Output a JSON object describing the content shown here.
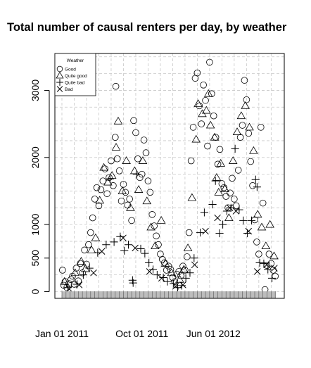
{
  "chart_data": {
    "type": "scatter",
    "title": "Total number of causal renters per day, by weather",
    "xlabel": "",
    "ylabel": "",
    "x_start": "2011-01-01",
    "x_end": "2012-12-31",
    "x_ticks": [
      {
        "date": "2011-01-01",
        "label": "Jan 01 2011"
      },
      {
        "date": "2011-10-01",
        "label": "Oct 01 2011"
      },
      {
        "date": "2012-06-01",
        "label": "Jun 01 2012"
      }
    ],
    "ylim": [
      -100,
      3550
    ],
    "y_ticks": [
      {
        "value": 0,
        "label": "0"
      },
      {
        "value": 500,
        "label": "500"
      },
      {
        "value": 1000,
        "label": "1000"
      },
      {
        "value": 2000,
        "label": "2000"
      },
      {
        "value": 3000,
        "label": "3000"
      }
    ],
    "grid": true,
    "legend_position": "top-left",
    "legend_title": "Weather",
    "series": [
      {
        "name": "Good",
        "marker": "circle",
        "points": [
          [
            "2011-01-03",
            320
          ],
          [
            "2011-01-07",
            95
          ],
          [
            "2011-01-12",
            150
          ],
          [
            "2011-01-18",
            60
          ],
          [
            "2011-01-25",
            120
          ],
          [
            "2011-02-01",
            180
          ],
          [
            "2011-02-06",
            230
          ],
          [
            "2011-02-12",
            110
          ],
          [
            "2011-02-19",
            350
          ],
          [
            "2011-02-26",
            160
          ],
          [
            "2011-03-05",
            420
          ],
          [
            "2011-03-12",
            280
          ],
          [
            "2011-03-19",
            620
          ],
          [
            "2011-03-26",
            410
          ],
          [
            "2011-04-02",
            700
          ],
          [
            "2011-04-09",
            880
          ],
          [
            "2011-04-16",
            1100
          ],
          [
            "2011-04-23",
            1380
          ],
          [
            "2011-04-30",
            1550
          ],
          [
            "2011-05-07",
            1280
          ],
          [
            "2011-05-14",
            1520
          ],
          [
            "2011-05-21",
            1650
          ],
          [
            "2011-05-28",
            1830
          ],
          [
            "2011-06-04",
            1460
          ],
          [
            "2011-06-11",
            1700
          ],
          [
            "2011-06-18",
            1950
          ],
          [
            "2011-06-25",
            1580
          ],
          [
            "2011-07-02",
            2300
          ],
          [
            "2011-07-04",
            3060
          ],
          [
            "2011-07-09",
            1980
          ],
          [
            "2011-07-16",
            1800
          ],
          [
            "2011-07-23",
            1350
          ],
          [
            "2011-07-30",
            1600
          ],
          [
            "2011-08-06",
            1480
          ],
          [
            "2011-08-13",
            1290
          ],
          [
            "2011-08-20",
            1380
          ],
          [
            "2011-08-27",
            1060
          ],
          [
            "2011-09-03",
            2550
          ],
          [
            "2011-09-10",
            2370
          ],
          [
            "2011-09-17",
            1980
          ],
          [
            "2011-09-24",
            1700
          ],
          [
            "2011-10-01",
            1750
          ],
          [
            "2011-10-08",
            2260
          ],
          [
            "2011-10-15",
            2070
          ],
          [
            "2011-10-22",
            1650
          ],
          [
            "2011-10-29",
            1480
          ],
          [
            "2011-11-05",
            1150
          ],
          [
            "2011-11-12",
            980
          ],
          [
            "2011-11-19",
            830
          ],
          [
            "2011-11-26",
            700
          ],
          [
            "2011-12-03",
            560
          ],
          [
            "2011-12-10",
            480
          ],
          [
            "2011-12-17",
            430
          ],
          [
            "2011-12-24",
            320
          ],
          [
            "2011-12-31",
            380
          ],
          [
            "2012-01-07",
            330
          ],
          [
            "2012-01-14",
            210
          ],
          [
            "2012-01-21",
            150
          ],
          [
            "2012-01-28",
            260
          ],
          [
            "2012-02-04",
            300
          ],
          [
            "2012-02-11",
            240
          ],
          [
            "2012-02-18",
            380
          ],
          [
            "2012-02-25",
            320
          ],
          [
            "2012-03-03",
            520
          ],
          [
            "2012-03-10",
            880
          ],
          [
            "2012-03-17",
            1950
          ],
          [
            "2012-03-24",
            2450
          ],
          [
            "2012-03-31",
            3180
          ],
          [
            "2012-04-07",
            3260
          ],
          [
            "2012-04-14",
            2770
          ],
          [
            "2012-04-21",
            2500
          ],
          [
            "2012-04-28",
            3080
          ],
          [
            "2012-05-05",
            2850
          ],
          [
            "2012-05-12",
            2170
          ],
          [
            "2012-05-19",
            3420
          ],
          [
            "2012-05-26",
            2950
          ],
          [
            "2012-06-02",
            2620
          ],
          [
            "2012-06-09",
            2300
          ],
          [
            "2012-06-16",
            1900
          ],
          [
            "2012-06-23",
            2120
          ],
          [
            "2012-06-30",
            1610
          ],
          [
            "2012-07-07",
            1550
          ],
          [
            "2012-07-14",
            1420
          ],
          [
            "2012-07-21",
            1250
          ],
          [
            "2012-07-28",
            1470
          ],
          [
            "2012-08-04",
            1690
          ],
          [
            "2012-08-11",
            1380
          ],
          [
            "2012-08-18",
            1280
          ],
          [
            "2012-08-25",
            1810
          ],
          [
            "2012-09-01",
            2300
          ],
          [
            "2012-09-08",
            2480
          ],
          [
            "2012-09-15",
            3150
          ],
          [
            "2012-09-22",
            2860
          ],
          [
            "2012-09-29",
            2360
          ],
          [
            "2012-10-06",
            1940
          ],
          [
            "2012-10-13",
            1580
          ],
          [
            "2012-10-20",
            1070
          ],
          [
            "2012-10-27",
            740
          ],
          [
            "2012-11-03",
            560
          ],
          [
            "2012-11-10",
            2450
          ],
          [
            "2012-11-17",
            1320
          ],
          [
            "2012-11-24",
            30
          ],
          [
            "2012-12-01",
            390
          ],
          [
            "2012-12-08",
            560
          ],
          [
            "2012-12-15",
            420
          ],
          [
            "2012-12-22",
            320
          ],
          [
            "2012-12-29",
            230
          ]
        ]
      },
      {
        "name": "Quite good",
        "marker": "triangle",
        "points": [
          [
            "2011-01-10",
            150
          ],
          [
            "2011-02-15",
            280
          ],
          [
            "2011-03-08",
            450
          ],
          [
            "2011-03-22",
            340
          ],
          [
            "2011-04-12",
            620
          ],
          [
            "2011-04-26",
            800
          ],
          [
            "2011-05-10",
            1360
          ],
          [
            "2011-05-24",
            1850
          ],
          [
            "2011-06-07",
            1630
          ],
          [
            "2011-06-21",
            1730
          ],
          [
            "2011-07-05",
            2150
          ],
          [
            "2011-07-12",
            2540
          ],
          [
            "2011-07-26",
            1500
          ],
          [
            "2011-08-09",
            1950
          ],
          [
            "2011-08-23",
            1250
          ],
          [
            "2011-09-06",
            1800
          ],
          [
            "2011-09-20",
            1520
          ],
          [
            "2011-10-04",
            1950
          ],
          [
            "2011-10-18",
            1350
          ],
          [
            "2011-11-01",
            960
          ],
          [
            "2011-11-15",
            680
          ],
          [
            "2011-12-06",
            1060
          ],
          [
            "2011-12-20",
            420
          ],
          [
            "2012-01-10",
            280
          ],
          [
            "2012-02-07",
            180
          ],
          [
            "2012-02-21",
            330
          ],
          [
            "2012-03-06",
            650
          ],
          [
            "2012-03-20",
            1400
          ],
          [
            "2012-04-03",
            2270
          ],
          [
            "2012-04-10",
            2800
          ],
          [
            "2012-04-24",
            2650
          ],
          [
            "2012-05-08",
            2700
          ],
          [
            "2012-05-15",
            2950
          ],
          [
            "2012-05-22",
            2480
          ],
          [
            "2012-06-05",
            2300
          ],
          [
            "2012-06-12",
            1700
          ],
          [
            "2012-06-19",
            1480
          ],
          [
            "2012-06-26",
            1910
          ],
          [
            "2012-07-10",
            1530
          ],
          [
            "2012-07-24",
            1100
          ],
          [
            "2012-08-07",
            1950
          ],
          [
            "2012-08-21",
            2380
          ],
          [
            "2012-09-04",
            2620
          ],
          [
            "2012-09-18",
            2770
          ],
          [
            "2012-10-02",
            2450
          ],
          [
            "2012-10-16",
            2100
          ],
          [
            "2012-10-30",
            1150
          ],
          [
            "2012-11-13",
            960
          ],
          [
            "2012-11-27",
            680
          ],
          [
            "2012-12-11",
            1000
          ],
          [
            "2012-12-25",
            530
          ]
        ]
      },
      {
        "name": "Quite bad",
        "marker": "plus",
        "points": [
          [
            "2011-01-21",
            60
          ],
          [
            "2011-02-22",
            110
          ],
          [
            "2011-03-15",
            250
          ],
          [
            "2011-04-05",
            350
          ],
          [
            "2011-05-03",
            580
          ],
          [
            "2011-06-01",
            700
          ],
          [
            "2011-06-14",
            1680
          ],
          [
            "2011-06-28",
            740
          ],
          [
            "2011-07-19",
            820
          ],
          [
            "2011-08-02",
            610
          ],
          [
            "2011-08-16",
            700
          ],
          [
            "2011-08-30",
            170
          ],
          [
            "2011-09-01",
            130
          ],
          [
            "2011-09-13",
            1750
          ],
          [
            "2011-09-27",
            640
          ],
          [
            "2011-10-11",
            570
          ],
          [
            "2011-10-25",
            430
          ],
          [
            "2011-11-08",
            330
          ],
          [
            "2011-11-22",
            250
          ],
          [
            "2011-12-13",
            210
          ],
          [
            "2011-12-27",
            150
          ],
          [
            "2012-01-17",
            120
          ],
          [
            "2012-01-31",
            60
          ],
          [
            "2012-02-14",
            90
          ],
          [
            "2012-02-28",
            200
          ],
          [
            "2012-03-13",
            280
          ],
          [
            "2012-03-27",
            500
          ],
          [
            "2012-04-17",
            880
          ],
          [
            "2012-05-01",
            1180
          ],
          [
            "2012-05-29",
            1300
          ],
          [
            "2012-06-08",
            1650
          ],
          [
            "2012-06-22",
            870
          ],
          [
            "2012-07-03",
            1000
          ],
          [
            "2012-07-17",
            1200
          ],
          [
            "2012-07-31",
            1250
          ],
          [
            "2012-08-14",
            2130
          ],
          [
            "2012-08-28",
            1220
          ],
          [
            "2012-09-11",
            1060
          ],
          [
            "2012-09-25",
            870
          ],
          [
            "2012-10-09",
            1060
          ],
          [
            "2012-10-23",
            1670
          ],
          [
            "2012-10-28",
            1560
          ],
          [
            "2012-11-06",
            430
          ],
          [
            "2012-11-20",
            420
          ],
          [
            "2012-12-04",
            330
          ],
          [
            "2012-12-18",
            200
          ]
        ]
      },
      {
        "name": "Bad",
        "marker": "x",
        "points": [
          [
            "2011-01-26",
            40
          ],
          [
            "2011-03-01",
            100
          ],
          [
            "2011-04-19",
            280
          ],
          [
            "2011-05-17",
            600
          ],
          [
            "2011-07-29",
            800
          ],
          [
            "2011-09-08",
            650
          ],
          [
            "2011-10-27",
            300
          ],
          [
            "2011-12-07",
            200
          ],
          [
            "2012-01-24",
            80
          ],
          [
            "2012-02-18",
            100
          ],
          [
            "2012-03-29",
            400
          ],
          [
            "2012-05-05",
            900
          ],
          [
            "2012-06-15",
            1100
          ],
          [
            "2012-07-27",
            1250
          ],
          [
            "2012-08-17",
            1200
          ],
          [
            "2012-09-29",
            900
          ],
          [
            "2012-10-29",
            300
          ],
          [
            "2012-11-30",
            400
          ],
          [
            "2012-12-26",
            350
          ]
        ]
      }
    ]
  }
}
